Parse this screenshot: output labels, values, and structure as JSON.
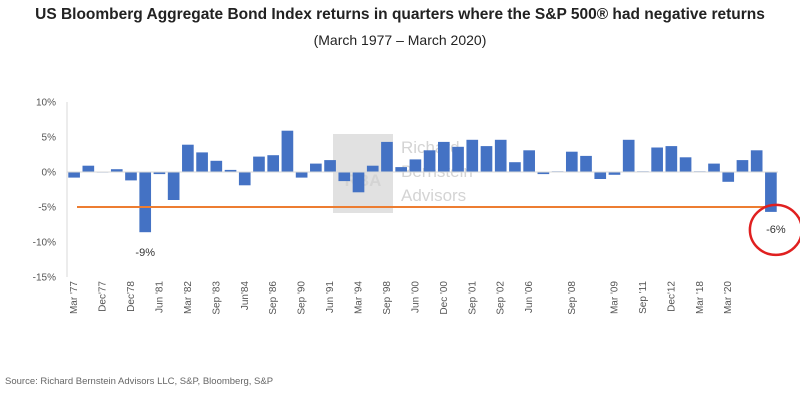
{
  "title": "US Bloomberg Aggregate Bond Index returns in quarters where the S&P 500® had negative returns",
  "subtitle": "(March 1977 – March 2020)",
  "source": "Source: Richard Bernstein Advisors LLC, S&P, Bloomberg, S&P",
  "watermark": {
    "logo_text": "RBA",
    "name_lines": [
      "Richard",
      "Bernstein",
      "Advisors"
    ]
  },
  "colors": {
    "bar": "#4472C4",
    "threshold_line": "#ED7D31",
    "highlight_circle": "#E02020"
  },
  "chart_data": {
    "type": "bar",
    "title": "US Bloomberg Aggregate Bond Index returns in quarters where the S&P 500® had negative returns",
    "subtitle": "(March 1977 – March 2020)",
    "xlabel": "",
    "ylabel": "",
    "ylim": [
      -15,
      10
    ],
    "yticks": [
      "10%",
      "5%",
      "0%",
      "-5%",
      "-10%",
      "-15%"
    ],
    "ytick_values": [
      10,
      5,
      0,
      -5,
      -10,
      -15
    ],
    "x_tick_labels": [
      "Mar '77",
      "Dec'77",
      "Dec'78",
      "Jun '81",
      "Mar '82",
      "Sep '83",
      "Jun'84",
      "Sep '86",
      "Sep '90",
      "Jun '91",
      "Mar '94",
      "Sep '98",
      "Jun '00",
      "Dec '00",
      "Sep '01",
      "Sep '02",
      "Jun '06",
      "Sep '08",
      "Mar '09",
      "Sep '11",
      "Dec'12",
      "Mar '18",
      "Mar '20"
    ],
    "x_tick_bar_index": [
      0,
      2,
      4,
      6,
      8,
      10,
      12,
      14,
      16,
      18,
      20,
      22,
      24,
      26,
      28,
      30,
      32,
      35,
      38,
      40,
      42,
      44,
      46
    ],
    "values": [
      -0.8,
      0.9,
      0,
      0.4,
      -1.2,
      -8.6,
      -0.3,
      -4.0,
      3.9,
      2.8,
      1.6,
      0.3,
      -1.9,
      2.2,
      2.4,
      5.9,
      -0.8,
      1.2,
      1.7,
      -1.3,
      -2.9,
      0.9,
      4.3,
      0.7,
      1.8,
      3.1,
      4.3,
      3.6,
      4.6,
      3.7,
      4.6,
      1.4,
      3.1,
      -0.3,
      0.1,
      2.9,
      2.3,
      -1.0,
      -0.4,
      4.6,
      0.1,
      3.5,
      3.7,
      2.1,
      0.1,
      1.2,
      -1.4,
      1.7,
      3.1,
      -5.7
    ],
    "reference_line": -5,
    "annotations": [
      {
        "text": "-9%",
        "bar_index": 5
      },
      {
        "text": "-6%",
        "bar_index": 49
      }
    ]
  }
}
